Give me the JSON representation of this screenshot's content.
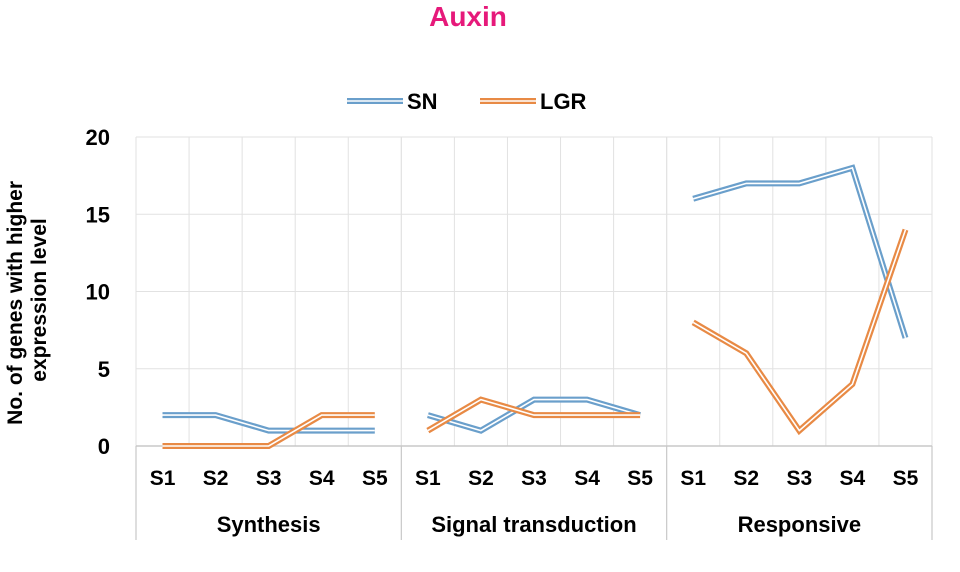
{
  "chart_data": {
    "type": "line",
    "title": "Auxin",
    "title_color": "#e6197a",
    "ylabel_lines": [
      "No. of genes with higher",
      "expression level"
    ],
    "ylim": [
      0,
      20
    ],
    "yticks": [
      0,
      5,
      10,
      15,
      20
    ],
    "grid": true,
    "legend_position": "top-center",
    "groups": [
      {
        "name": "Synthesis",
        "categories": [
          "S1",
          "S2",
          "S3",
          "S4",
          "S5"
        ]
      },
      {
        "name": "Signal transduction",
        "categories": [
          "S1",
          "S2",
          "S3",
          "S4",
          "S5"
        ]
      },
      {
        "name": "Responsive",
        "categories": [
          "S1",
          "S2",
          "S3",
          "S4",
          "S5"
        ]
      }
    ],
    "series": [
      {
        "name": "SN",
        "color": "#6a9fcb",
        "values": [
          [
            2,
            2,
            1,
            1,
            1
          ],
          [
            2,
            1,
            3,
            3,
            2
          ],
          [
            16,
            17,
            17,
            18,
            7
          ]
        ]
      },
      {
        "name": "LGR",
        "color": "#e88a45",
        "values": [
          [
            0,
            0,
            0,
            2,
            2
          ],
          [
            1,
            3,
            2,
            2,
            2
          ],
          [
            8,
            6,
            1,
            4,
            14
          ]
        ]
      }
    ]
  }
}
